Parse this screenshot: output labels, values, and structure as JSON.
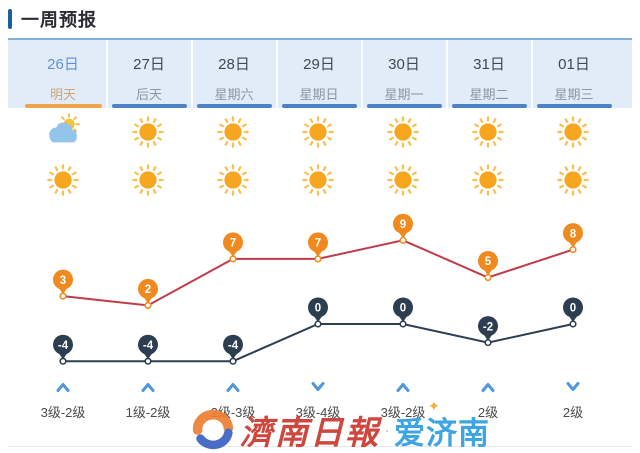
{
  "title": "一周预报",
  "days": [
    {
      "date": "26日",
      "weekday": "明天",
      "active": true,
      "day_icon": "sun-behind-cloud-icon",
      "night_icon": "sunny-icon",
      "wind_direction": "up",
      "wind_level": "3级-2级",
      "high": 3,
      "low": -4
    },
    {
      "date": "27日",
      "weekday": "后天",
      "active": false,
      "day_icon": "sunny-icon",
      "night_icon": "sunny-icon",
      "wind_direction": "up",
      "wind_level": "1级-2级",
      "high": 2,
      "low": -4
    },
    {
      "date": "28日",
      "weekday": "星期六",
      "active": false,
      "day_icon": "sunny-icon",
      "night_icon": "sunny-icon",
      "wind_direction": "up",
      "wind_level": "2级-3级",
      "high": 7,
      "low": -4
    },
    {
      "date": "29日",
      "weekday": "星期日",
      "active": false,
      "day_icon": "sunny-icon",
      "night_icon": "sunny-icon",
      "wind_direction": "down",
      "wind_level": "3级-4级",
      "high": 7,
      "low": 0
    },
    {
      "date": "30日",
      "weekday": "星期一",
      "active": false,
      "day_icon": "sunny-icon",
      "night_icon": "sunny-icon",
      "wind_direction": "up",
      "wind_level": "3级-2级",
      "high": 9,
      "low": 0
    },
    {
      "date": "31日",
      "weekday": "星期二",
      "active": false,
      "day_icon": "sunny-icon",
      "night_icon": "sunny-icon",
      "wind_direction": "up",
      "wind_level": "2级",
      "high": 5,
      "low": -2
    },
    {
      "date": "01日",
      "weekday": "星期三",
      "active": false,
      "day_icon": "sunny-icon",
      "night_icon": "sunny-icon",
      "wind_direction": "down",
      "wind_level": "2级",
      "high": 8,
      "low": 0
    }
  ],
  "chart_data": {
    "type": "line",
    "categories": [
      "26日",
      "27日",
      "28日",
      "29日",
      "30日",
      "31日",
      "01日"
    ],
    "series": [
      {
        "name": "high-temperature",
        "values": [
          3,
          2,
          7,
          7,
          9,
          5,
          8
        ],
        "line_color": "#c03b4a",
        "marker_color": "#f08a1f"
      },
      {
        "name": "low-temperature",
        "values": [
          -4,
          -4,
          -4,
          0,
          0,
          -2,
          0
        ],
        "line_color": "#2d3e50",
        "marker_color": "#2d3e50"
      }
    ],
    "value_range": [
      -4,
      9
    ],
    "grid": false,
    "legend": "none",
    "marker_style": "balloon-pin"
  },
  "watermark": {
    "newspaper_logo_text": "濟南日報",
    "app_logo_text": "爱济南",
    "app_spark": "✦",
    "separator_dot": "·"
  },
  "colors": {
    "title_accent": "#1c5fa0",
    "header_bg": "#e1ecf8",
    "header_top_border": "#80b0de",
    "tab_underline": "#4c82c5",
    "active_underline": "#f0a24d",
    "active_date_text": "#5c92d8",
    "active_weekday_text": "#cfa473",
    "sun_core": "#f6a71f",
    "sun_ray": "#f8c050",
    "cloud": "#93c4ea",
    "cloud_sun": "#f6c33d",
    "cloud_sun_ray": "#f3b33a",
    "wind_arrow": "#4f97d8",
    "newspaper_red": "#cb3a31",
    "app_blue": "#2f9fdf"
  }
}
